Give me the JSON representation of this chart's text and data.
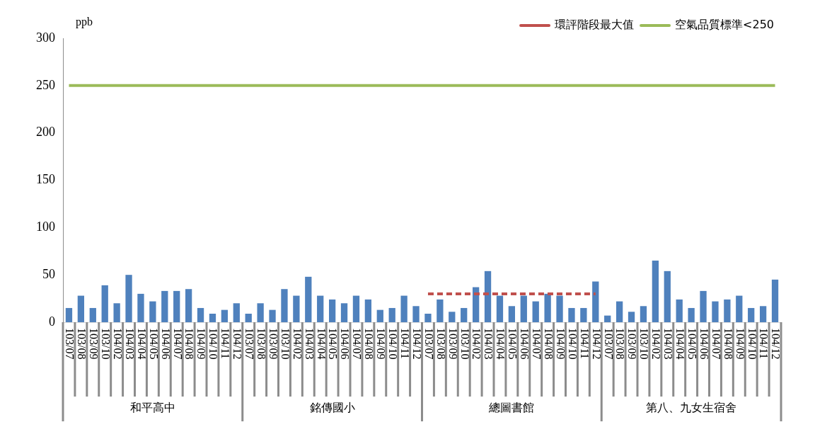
{
  "chart_data": {
    "type": "bar",
    "ylabel": "ppb",
    "ylim": [
      0,
      300
    ],
    "yticks": [
      0,
      50,
      100,
      150,
      200,
      250,
      300
    ],
    "grid": false,
    "legend": "top right",
    "marker": "none",
    "categories": [
      "103/07",
      "103/08",
      "103/09",
      "103/10",
      "104/02",
      "104/03",
      "104/04",
      "104/05",
      "104/06",
      "104/07",
      "104/08",
      "104/09",
      "104/10",
      "104/11",
      "104/12",
      "103/07",
      "103/08",
      "103/09",
      "103/10",
      "104/02",
      "104/03",
      "104/04",
      "104/05",
      "104/06",
      "104/07",
      "104/08",
      "104/09",
      "104/10",
      "104/11",
      "104/12",
      "103/07",
      "103/08",
      "103/09",
      "103/10",
      "104/02",
      "104/03",
      "104/04",
      "104/05",
      "104/06",
      "104/07",
      "104/08",
      "104/09",
      "104/10",
      "104/11",
      "104/12",
      "103/07",
      "103/08",
      "103/09",
      "103/10",
      "104/02",
      "104/03",
      "104/04",
      "104/05",
      "104/06",
      "104/07",
      "104/08",
      "104/09",
      "104/10",
      "104/11",
      "104/12"
    ],
    "annotations": [
      "和平高中",
      "銘傳國小",
      "總圖書館",
      "第八、九女生宿舍"
    ],
    "series": [
      {
        "color": "#4f81bd",
        "values": [
          15,
          28,
          15,
          39,
          20,
          50,
          30,
          22,
          33,
          33,
          35,
          15,
          9,
          13,
          20,
          9,
          20,
          13,
          35,
          28,
          48,
          28,
          24,
          20,
          28,
          24,
          13,
          15,
          28,
          17,
          9,
          24,
          11,
          15,
          37,
          54,
          28,
          17,
          28,
          22,
          30,
          28,
          15,
          15,
          43,
          7,
          22,
          11,
          17,
          65,
          54,
          24,
          15,
          33,
          22,
          24,
          28,
          15,
          17,
          45
        ]
      },
      {
        "type": "line",
        "name": "環評階段最大值",
        "color": "#c0504d",
        "line_style": "dashed",
        "values": [
          null,
          null,
          null,
          null,
          null,
          null,
          null,
          null,
          null,
          null,
          null,
          null,
          null,
          null,
          null,
          null,
          null,
          null,
          null,
          null,
          null,
          null,
          null,
          null,
          null,
          null,
          null,
          null,
          null,
          null,
          30,
          30,
          30,
          30,
          30,
          30,
          30,
          30,
          30,
          30,
          30,
          30,
          30,
          30,
          30,
          null,
          null,
          null,
          null,
          null,
          null,
          null,
          null,
          null,
          null,
          null,
          null,
          null,
          null,
          null
        ]
      },
      {
        "type": "line",
        "name": "空氣品質標準<250",
        "color": "#9bbb59",
        "line_style": "solid",
        "values": [
          250,
          250,
          250,
          250,
          250,
          250,
          250,
          250,
          250,
          250,
          250,
          250,
          250,
          250,
          250,
          250,
          250,
          250,
          250,
          250,
          250,
          250,
          250,
          250,
          250,
          250,
          250,
          250,
          250,
          250,
          250,
          250,
          250,
          250,
          250,
          250,
          250,
          250,
          250,
          250,
          250,
          250,
          250,
          250,
          250,
          250,
          250,
          250,
          250,
          250,
          250,
          250,
          250,
          250,
          250,
          250,
          250,
          250,
          250,
          250
        ]
      }
    ]
  }
}
